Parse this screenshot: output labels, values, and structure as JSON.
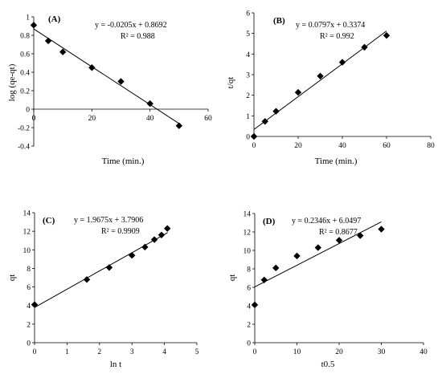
{
  "chart_data": [
    {
      "type": "scatter",
      "panel": "(A)",
      "xlabel": "Time (min.)",
      "ylabel": "log (qe-qt)",
      "xlim": [
        0,
        60
      ],
      "ylim": [
        -0.4,
        1.0
      ],
      "xticks": [
        0,
        20,
        40,
        60
      ],
      "yticks": [
        -0.4,
        -0.2,
        0,
        0.2,
        0.4,
        0.6,
        0.8,
        1
      ],
      "x": [
        0,
        5,
        10,
        20,
        30,
        40,
        50
      ],
      "y": [
        0.91,
        0.74,
        0.62,
        0.45,
        0.3,
        0.06,
        -0.18
      ],
      "trendline": {
        "slope": -0.0205,
        "intercept": 0.8692,
        "x_range": [
          0,
          50
        ]
      },
      "equation": "y = -0.0205x + 0.8692",
      "r2": "R² = 0.988",
      "grid": false,
      "x_axis_at_zero": true
    },
    {
      "type": "scatter",
      "panel": "(B)",
      "xlabel": "Time (min.)",
      "ylabel": "t/qt",
      "xlim": [
        0,
        80
      ],
      "ylim": [
        0,
        6
      ],
      "xticks": [
        0,
        20,
        40,
        60,
        80
      ],
      "yticks": [
        0,
        1,
        2,
        3,
        4,
        5,
        6
      ],
      "x": [
        0,
        5,
        10,
        20,
        30,
        40,
        50,
        60
      ],
      "y": [
        0,
        0.73,
        1.22,
        2.14,
        2.93,
        3.6,
        4.33,
        4.9
      ],
      "trendline": {
        "slope": 0.0797,
        "intercept": 0.3374,
        "x_range": [
          0,
          60
        ]
      },
      "equation": "y = 0.0797x + 0.3374",
      "r2": "R² = 0.992",
      "grid": false
    },
    {
      "type": "scatter",
      "panel": "(C)",
      "xlabel": "ln t",
      "ylabel": "qt",
      "xlim": [
        0,
        5
      ],
      "ylim": [
        0,
        14
      ],
      "xticks": [
        0,
        1,
        2,
        3,
        4,
        5
      ],
      "yticks": [
        0,
        2,
        4,
        6,
        8,
        10,
        12,
        14
      ],
      "x": [
        0,
        1.61,
        2.3,
        3.0,
        3.4,
        3.69,
        3.91,
        4.09
      ],
      "y": [
        4.1,
        6.8,
        8.1,
        9.4,
        10.3,
        11.1,
        11.6,
        12.3
      ],
      "trendline": {
        "slope": 1.9675,
        "intercept": 3.7906,
        "x_range": [
          0,
          4.1
        ]
      },
      "equation": "y = 1.9675x + 3.7906",
      "r2": "R² = 0.9909",
      "grid": false
    },
    {
      "type": "scatter",
      "panel": "(D)",
      "xlabel": "t0.5",
      "ylabel": "qt",
      "xlim": [
        0,
        40
      ],
      "ylim": [
        0,
        14
      ],
      "xticks": [
        0,
        10,
        20,
        30,
        40
      ],
      "yticks": [
        0,
        2,
        4,
        6,
        8,
        10,
        12,
        14
      ],
      "x": [
        0,
        2.24,
        5,
        10,
        15,
        20,
        25,
        30
      ],
      "y": [
        4.1,
        6.8,
        8.1,
        9.4,
        10.3,
        11.1,
        11.6,
        12.3
      ],
      "trendline": {
        "slope": 0.2346,
        "intercept": 6.0497,
        "x_range": [
          0,
          30
        ]
      },
      "equation": "y = 0.2346x + 6.0497",
      "r2": "R² = 0.8677",
      "grid": false
    }
  ]
}
